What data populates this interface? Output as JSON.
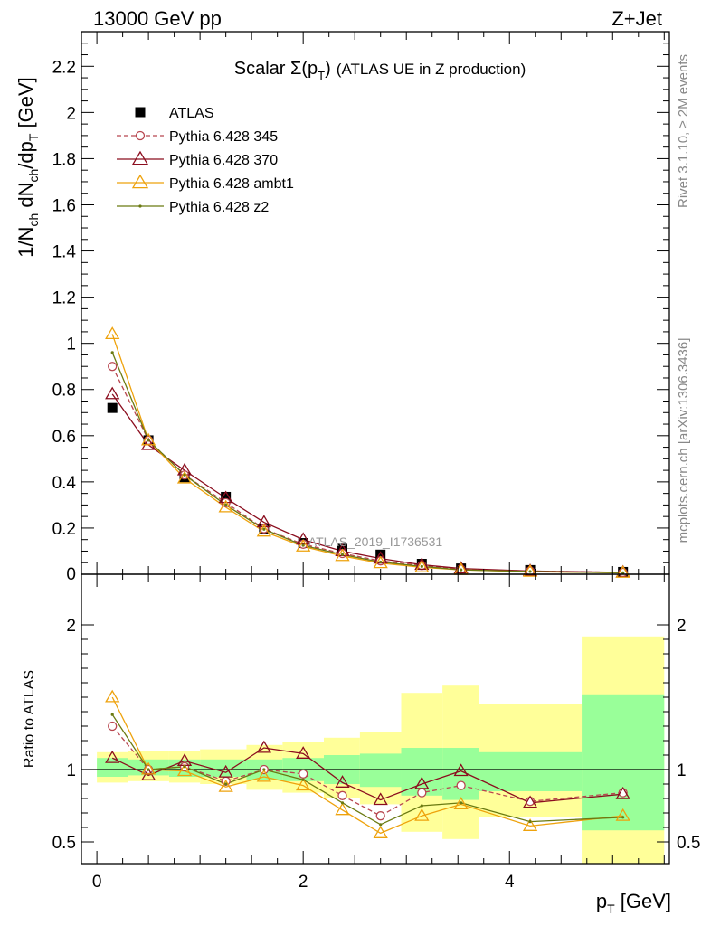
{
  "header": {
    "left": "13000 GeV pp",
    "right": "Z+Jet"
  },
  "side_text": {
    "rivet": "Rivet 3.1.10, ≥ 2M events",
    "mcplots": "mcplots.cern.ch [arXiv:1306.3436]"
  },
  "chart_data": [
    {
      "type": "line",
      "title": "Scalar Σ(pT) (ATLAS UE in Z production)",
      "title_parts": {
        "main": "Scalar Σ(p",
        "sub": "T",
        "close": ")",
        "rest": "(ATLAS UE in Z production)"
      },
      "watermark": "ATLAS_2019_I1736531",
      "ylabel": "1/N_ch dN_ch/dp_T [GeV]",
      "ylabel_parts": [
        "1/N",
        "ch",
        " dN",
        "ch",
        "/dp",
        "T",
        " [GeV]"
      ],
      "xlim": [
        -0.15,
        5.55
      ],
      "ylim": [
        0,
        2.35
      ],
      "yticks": [
        0.2,
        0.4,
        0.6,
        0.8,
        1,
        1.2,
        1.4,
        1.6,
        1.8,
        2,
        2.2
      ],
      "ytick_labels": [
        "0.2",
        "0.4",
        "0.6",
        "0.8",
        "1",
        "1.2",
        "1.4",
        "1.6",
        "1.8",
        "2",
        "2.2"
      ],
      "ytick_zero_label": "0",
      "legend_position": "top-left",
      "x": [
        0.15,
        0.5,
        0.85,
        1.25,
        1.62,
        2.0,
        2.38,
        2.75,
        3.15,
        3.53,
        4.2,
        5.1
      ],
      "series": [
        {
          "name": "ATLAS",
          "color": "#000000",
          "marker": "square",
          "values": [
            0.72,
            0.58,
            0.42,
            0.335,
            0.195,
            0.135,
            0.11,
            0.085,
            0.045,
            0.025,
            0.018,
            0.01
          ]
        },
        {
          "name": "Pythia 6.428 345",
          "color": "#b8464f",
          "marker": "circle",
          "dash": true,
          "values": [
            0.9,
            0.58,
            0.43,
            0.31,
            0.197,
            0.13,
            0.09,
            0.058,
            0.038,
            0.022,
            0.014,
            0.008
          ]
        },
        {
          "name": "Pythia 6.428 370",
          "color": "#8b0d1e",
          "marker": "triangle",
          "values": [
            0.78,
            0.56,
            0.45,
            0.33,
            0.225,
            0.15,
            0.1,
            0.068,
            0.041,
            0.025,
            0.014,
            0.008
          ]
        },
        {
          "name": "Pythia 6.428 ambt1",
          "color": "#eea20c",
          "marker": "triangle",
          "values": [
            1.04,
            0.58,
            0.415,
            0.29,
            0.185,
            0.12,
            0.079,
            0.048,
            0.03,
            0.019,
            0.011,
            0.0066
          ]
        },
        {
          "name": "Pythia 6.428 z2",
          "color": "#6b7a12",
          "marker": "dot",
          "values": [
            0.96,
            0.58,
            0.43,
            0.3,
            0.195,
            0.125,
            0.085,
            0.053,
            0.034,
            0.019,
            0.012,
            0.0066
          ]
        }
      ]
    },
    {
      "type": "line",
      "ylabel": "Ratio to ATLAS",
      "xlabel": "p_T [GeV]",
      "xlabel_parts": {
        "main": "p",
        "sub": "T",
        "rest": " [GeV]"
      },
      "xlim": [
        -0.15,
        5.55
      ],
      "ylim": [
        0.35,
        2.35
      ],
      "xticks": [
        0,
        2,
        4
      ],
      "xtick_labels": [
        "0",
        "2",
        "4"
      ],
      "yticks": [
        0.5,
        1,
        2
      ],
      "ytick_labels": [
        "0.5",
        "1",
        "2"
      ],
      "reference_line": 1,
      "bin_edges": [
        0,
        0.3,
        0.7,
        1.0,
        1.45,
        1.8,
        2.2,
        2.55,
        2.95,
        3.35,
        3.7,
        4.7,
        5.5
      ],
      "band_inner": [
        [
          0.95,
          1.08
        ],
        [
          0.96,
          1.07
        ],
        [
          0.95,
          1.07
        ],
        [
          0.95,
          1.07
        ],
        [
          0.93,
          1.07
        ],
        [
          0.92,
          1.08
        ],
        [
          0.9,
          1.1
        ],
        [
          0.88,
          1.11
        ],
        [
          0.82,
          1.15
        ],
        [
          0.79,
          1.15
        ],
        [
          0.85,
          1.12
        ],
        [
          0.58,
          1.52
        ]
      ],
      "band_outer": [
        [
          0.91,
          1.12
        ],
        [
          0.92,
          1.13
        ],
        [
          0.91,
          1.13
        ],
        [
          0.9,
          1.14
        ],
        [
          0.86,
          1.17
        ],
        [
          0.84,
          1.19
        ],
        [
          0.8,
          1.22
        ],
        [
          0.76,
          1.26
        ],
        [
          0.57,
          1.53
        ],
        [
          0.52,
          1.58
        ],
        [
          0.67,
          1.45
        ],
        [
          0.35,
          1.92
        ]
      ],
      "band_colors": {
        "inner": "#99ff99",
        "outer": "#ffff99"
      },
      "x": [
        0.15,
        0.5,
        0.85,
        1.25,
        1.62,
        2.0,
        2.38,
        2.75,
        3.15,
        3.53,
        4.2,
        5.1
      ],
      "series": [
        {
          "name": "Pythia 6.428 345",
          "color": "#b8464f",
          "marker": "circle",
          "dash": true,
          "values": [
            1.3,
            1.0,
            1.02,
            0.92,
            1.0,
            0.97,
            0.82,
            0.68,
            0.84,
            0.89,
            0.78,
            0.84
          ]
        },
        {
          "name": "Pythia 6.428 370",
          "color": "#8b0d1e",
          "marker": "triangle",
          "values": [
            1.08,
            0.96,
            1.06,
            0.98,
            1.15,
            1.11,
            0.91,
            0.79,
            0.9,
            0.99,
            0.77,
            0.83
          ]
        },
        {
          "name": "Pythia 6.428 ambt1",
          "color": "#eea20c",
          "marker": "triangle",
          "values": [
            1.5,
            1.0,
            0.99,
            0.88,
            0.95,
            0.89,
            0.72,
            0.56,
            0.68,
            0.76,
            0.61,
            0.68
          ]
        },
        {
          "name": "Pythia 6.428 z2",
          "color": "#6b7a12",
          "marker": "dot",
          "values": [
            1.38,
            1.0,
            1.02,
            0.9,
            1.0,
            0.93,
            0.77,
            0.62,
            0.75,
            0.77,
            0.64,
            0.67
          ]
        }
      ]
    }
  ]
}
